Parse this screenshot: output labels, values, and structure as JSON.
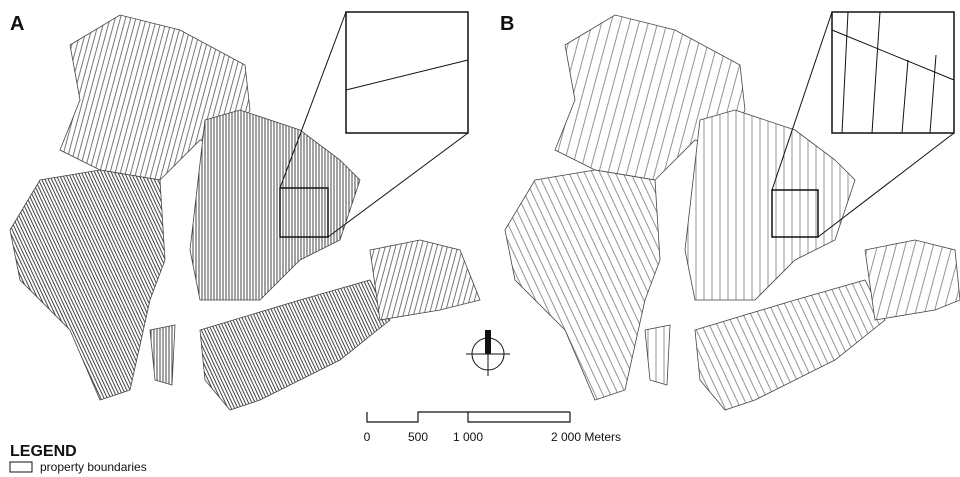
{
  "panels": [
    {
      "label": "A"
    },
    {
      "label": "B"
    }
  ],
  "scale_bar": {
    "labels": [
      "0",
      "500",
      "1 000",
      "2 000 Meters"
    ]
  },
  "legend": {
    "title": "LEGEND",
    "items": [
      "property boundaries"
    ]
  }
}
